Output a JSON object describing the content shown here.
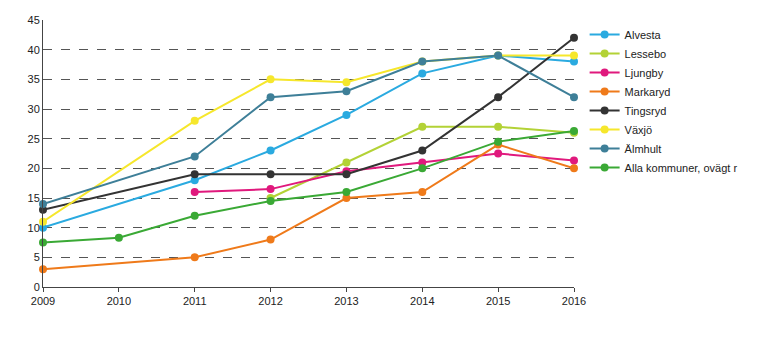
{
  "chart_data": {
    "type": "line",
    "x": [
      2009,
      2010,
      2011,
      2012,
      2013,
      2014,
      2015,
      2016
    ],
    "series": [
      {
        "name": "Alvesta",
        "color": "#2aaae0",
        "values": [
          10,
          null,
          18,
          23,
          29,
          36,
          39,
          38
        ]
      },
      {
        "name": "Lessebo",
        "color": "#b3d236",
        "values": [
          null,
          null,
          null,
          15,
          21,
          27,
          27,
          26
        ]
      },
      {
        "name": "Ljungby",
        "color": "#e0197d",
        "values": [
          null,
          null,
          16,
          16.5,
          19.5,
          21,
          22.5,
          21.3
        ]
      },
      {
        "name": "Markaryd",
        "color": "#ef7a1a",
        "values": [
          3,
          null,
          5,
          8,
          15,
          16,
          24,
          20
        ]
      },
      {
        "name": "Tingsryd",
        "color": "#333333",
        "values": [
          13,
          null,
          19,
          19,
          19,
          23,
          32,
          42
        ]
      },
      {
        "name": "Växjö",
        "color": "#f6e72c",
        "values": [
          11,
          null,
          28,
          35,
          34.5,
          38,
          39,
          39
        ]
      },
      {
        "name": "Älmhult",
        "color": "#3e7f98",
        "values": [
          14,
          null,
          22,
          32,
          33,
          38,
          39,
          32
        ]
      },
      {
        "name": "Alla kommuner, ovägt r",
        "color": "#3aa935",
        "values": [
          7.5,
          8.3,
          12,
          14.5,
          16,
          20,
          24.5,
          26.3
        ]
      }
    ],
    "xlim": [
      2009,
      2016
    ],
    "xticks": [
      2009,
      2010,
      2011,
      2012,
      2013,
      2014,
      2015,
      2016
    ],
    "ylim": [
      0,
      45
    ],
    "yticks": [
      0,
      5,
      10,
      15,
      20,
      25,
      30,
      35,
      40,
      45
    ],
    "grid": true,
    "legend": "right",
    "marker": "circle",
    "line_style": "solid"
  }
}
